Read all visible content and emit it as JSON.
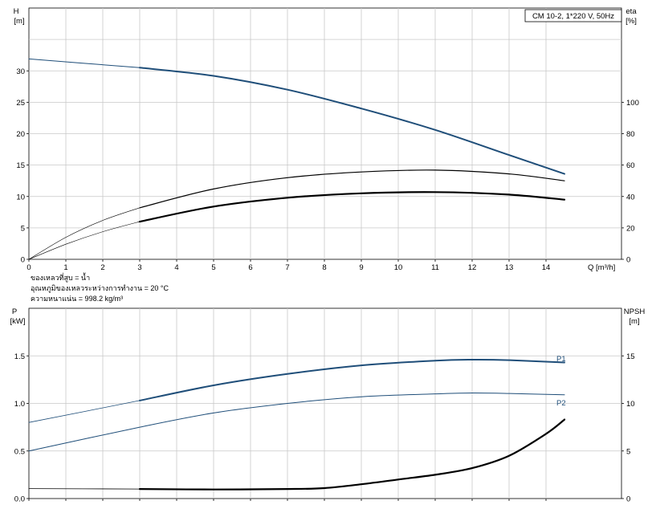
{
  "model_box": "CM 10-2, 1*220 V, 50Hz",
  "notes": [
    "ของเหลวที่สูบ = น้ำ",
    "อุณหภูมิของเหลวระหว่างการทำงาน = 20 °C",
    "ความหนาแน่น = 998.2 kg/m³"
  ],
  "chart_data": [
    {
      "type": "line",
      "panel": "top",
      "xlabel": "Q [m³/h]",
      "xlim": [
        0,
        15
      ],
      "xticks": [
        0,
        1,
        2,
        3,
        4,
        5,
        6,
        7,
        8,
        9,
        10,
        11,
        12,
        13,
        14
      ],
      "left_axis": {
        "label": "H",
        "unit": "[m]",
        "lim": [
          0,
          40
        ],
        "ticks": [
          0,
          5,
          10,
          15,
          20,
          25,
          30
        ]
      },
      "right_axis": {
        "label": "eta",
        "unit": "[%]",
        "lim": [
          0,
          160
        ],
        "ticks": [
          0,
          20,
          40,
          60,
          80,
          100
        ]
      },
      "grid": true,
      "series": [
        {
          "axis": "left",
          "color": "#1f4e79",
          "width": 2,
          "style": "head",
          "x": [
            3,
            5,
            7,
            9,
            11,
            13,
            14.5
          ],
          "y": [
            30.5,
            29.2,
            27.0,
            24.0,
            20.6,
            16.6,
            13.6
          ]
        },
        {
          "axis": "left",
          "color": "#000000",
          "width": 0.6,
          "x": [
            0,
            1,
            2,
            3
          ],
          "y": [
            0,
            3.5,
            6.2,
            8.2
          ]
        },
        {
          "axis": "left",
          "color": "#000000",
          "width": 1.2,
          "x": [
            3,
            5,
            7,
            9,
            11,
            13,
            14.5
          ],
          "y": [
            8.2,
            11.2,
            13.0,
            13.9,
            14.2,
            13.6,
            12.5
          ]
        },
        {
          "axis": "left",
          "color": "#000000",
          "width": 0.6,
          "x": [
            0,
            1,
            2,
            3
          ],
          "y": [
            0,
            2.4,
            4.4,
            6.0
          ]
        },
        {
          "axis": "left",
          "color": "#000000",
          "width": 2.2,
          "x": [
            3,
            5,
            7,
            9,
            11,
            13,
            14.5
          ],
          "y": [
            6.0,
            8.4,
            9.8,
            10.5,
            10.7,
            10.3,
            9.5
          ]
        },
        {
          "axis": "left",
          "color": "#1f4e79",
          "width": 1,
          "x": [
            0,
            3
          ],
          "y": [
            31.9,
            30.5
          ]
        }
      ]
    },
    {
      "type": "line",
      "panel": "bottom",
      "xlim": [
        0,
        15
      ],
      "xticks": [
        0,
        1,
        2,
        3,
        4,
        5,
        6,
        7,
        8,
        9,
        10,
        11,
        12,
        13,
        14
      ],
      "left_axis": {
        "label": "P",
        "unit": "[kW]",
        "lim": [
          0,
          2.0
        ],
        "ticks": [
          0.0,
          0.5,
          1.0,
          1.5
        ]
      },
      "right_axis": {
        "label": "NPSH",
        "unit": "[m]",
        "lim": [
          0,
          20
        ],
        "ticks": [
          0,
          5,
          10,
          15
        ]
      },
      "grid": true,
      "series": [
        {
          "name": "P1",
          "axis": "left",
          "color": "#1f4e79",
          "width": 2,
          "x": [
            3,
            5,
            7,
            9,
            11,
            12,
            13,
            14.5
          ],
          "y": [
            1.03,
            1.19,
            1.31,
            1.4,
            1.45,
            1.46,
            1.455,
            1.43
          ]
        },
        {
          "axis": "left",
          "color": "#1f4e79",
          "width": 0.8,
          "x": [
            0,
            3
          ],
          "y": [
            0.8,
            1.03
          ]
        },
        {
          "name": "P2",
          "axis": "left",
          "color": "#1f4e79",
          "width": 1,
          "x": [
            0,
            3,
            5,
            7,
            9,
            11,
            12,
            13,
            14.5
          ],
          "y": [
            0.5,
            0.75,
            0.9,
            1.0,
            1.07,
            1.1,
            1.11,
            1.105,
            1.09
          ]
        },
        {
          "axis": "right",
          "color": "#000000",
          "width": 0.8,
          "x": [
            0,
            3
          ],
          "y": [
            1.05,
            1.0
          ]
        },
        {
          "axis": "right",
          "color": "#000000",
          "width": 2.2,
          "x": [
            3,
            5,
            7,
            8,
            9,
            10,
            11,
            12,
            13,
            14,
            14.5
          ],
          "y": [
            1.0,
            0.95,
            1.0,
            1.1,
            1.5,
            2.0,
            2.5,
            3.2,
            4.5,
            6.8,
            8.3
          ]
        }
      ]
    }
  ]
}
